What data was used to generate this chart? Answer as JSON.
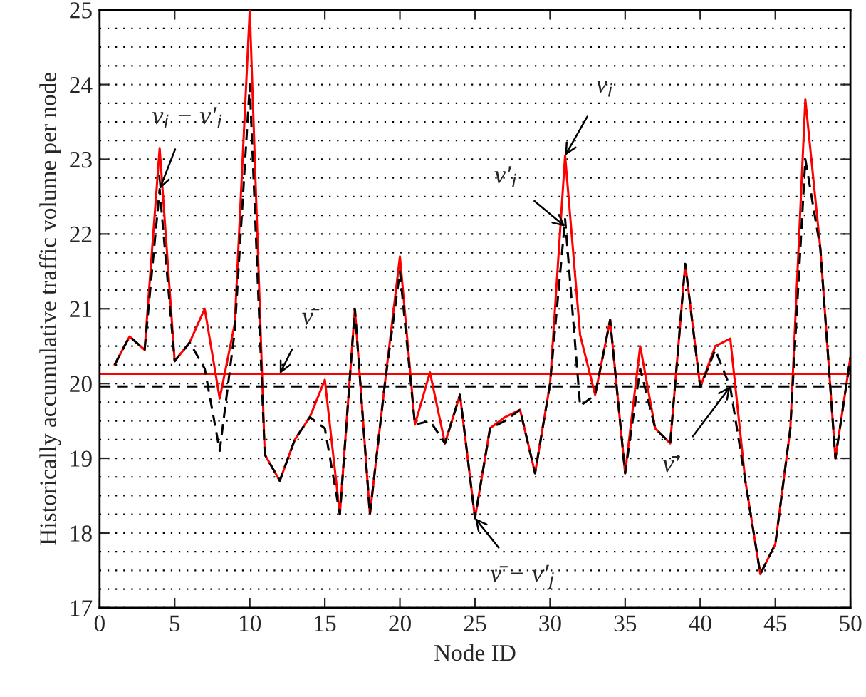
{
  "chart_data": {
    "type": "line",
    "xlabel": "Node ID",
    "ylabel": "Historically accumulative traffic volume per node",
    "x": [
      1,
      2,
      3,
      4,
      5,
      6,
      7,
      8,
      9,
      10,
      11,
      12,
      13,
      14,
      15,
      16,
      17,
      18,
      19,
      20,
      21,
      22,
      23,
      24,
      25,
      26,
      27,
      28,
      29,
      30,
      31,
      32,
      33,
      34,
      35,
      36,
      37,
      38,
      39,
      40,
      41,
      42,
      43,
      44,
      45,
      46,
      47,
      48,
      49,
      50
    ],
    "series": [
      {
        "color": "#ff0000",
        "line_style": "solid",
        "values": [
          20.25,
          20.63,
          20.45,
          23.15,
          20.3,
          20.55,
          21.0,
          19.8,
          20.8,
          25.0,
          19.05,
          18.7,
          19.25,
          19.55,
          20.05,
          18.25,
          21.0,
          18.25,
          20.0,
          21.7,
          19.45,
          20.15,
          19.2,
          19.85,
          18.2,
          19.4,
          19.55,
          19.65,
          18.8,
          20.0,
          23.05,
          20.65,
          19.85,
          20.85,
          18.8,
          20.5,
          19.4,
          19.2,
          21.6,
          19.95,
          20.5,
          20.6,
          18.7,
          17.45,
          17.85,
          19.4,
          23.8,
          21.8,
          19.0,
          20.35
        ]
      },
      {
        "color": "#000000",
        "line_style": "dashed",
        "values": [
          20.25,
          20.63,
          20.45,
          22.6,
          20.3,
          20.55,
          20.2,
          19.1,
          20.7,
          24.0,
          19.05,
          18.7,
          19.25,
          19.55,
          19.4,
          18.25,
          21.0,
          18.25,
          20.0,
          21.5,
          19.45,
          19.5,
          19.2,
          19.85,
          18.2,
          19.4,
          19.5,
          19.65,
          18.8,
          20.0,
          22.2,
          19.7,
          19.85,
          20.85,
          18.8,
          20.2,
          19.4,
          19.2,
          21.6,
          19.95,
          20.45,
          19.95,
          18.7,
          17.45,
          17.85,
          19.4,
          23.0,
          21.8,
          19.0,
          20.35
        ]
      }
    ],
    "ref_lines": [
      {
        "axis": "y",
        "value": 20.13,
        "color": "#ff0000",
        "line_style": "solid"
      },
      {
        "axis": "y",
        "value": 19.96,
        "color": "#000000",
        "line_style": "dashed"
      }
    ],
    "annotations": [
      {
        "text": "v$_{i}$ − v′$_{i}$",
        "x": 4,
        "y": 22.6
      },
      {
        "text": "v$_{i}$",
        "x": 31,
        "y": 23.05
      },
      {
        "text": "v′$_{i}$",
        "x": 31,
        "y": 22.1
      },
      {
        "text": "v̄",
        "x": 12,
        "y": 20.13
      },
      {
        "text": "v̄′",
        "x": 42,
        "y": 19.96
      },
      {
        "text": "v̄ − v′$_{j}$",
        "x": 25,
        "y": 18.2
      }
    ],
    "xlim": [
      0,
      50
    ],
    "xticks": [
      0,
      5,
      10,
      15,
      20,
      25,
      30,
      35,
      40,
      45,
      50
    ],
    "ylim": [
      17,
      25
    ],
    "yticks": [
      17,
      18,
      19,
      20,
      21,
      22,
      23,
      24,
      25
    ],
    "grid": "y",
    "legend": false,
    "marker": "none"
  }
}
